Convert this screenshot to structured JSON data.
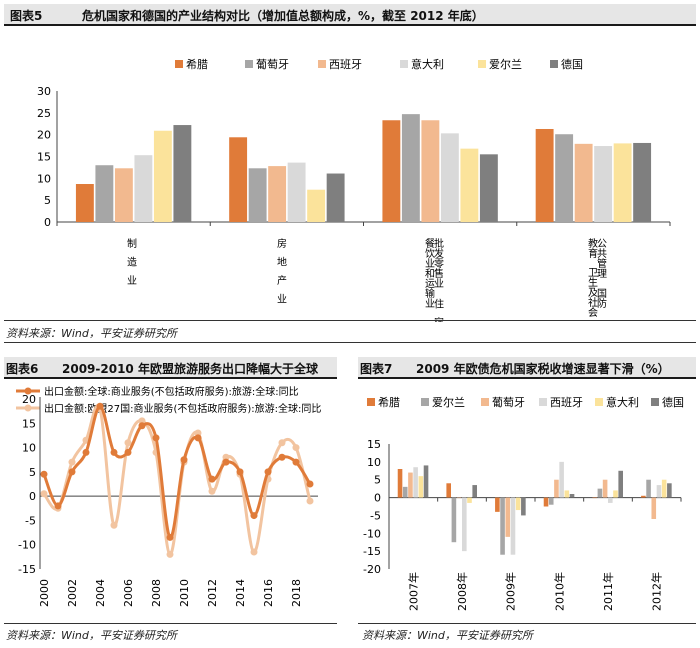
{
  "chart_data": [
    {
      "id": "fig5",
      "type": "bar",
      "figure_label": "图表5",
      "title": "危机国家和德国的产业结构对比（增加值总额构成，%，截至 2012 年底）",
      "legend": [
        "希腊",
        "葡萄牙",
        "西班牙",
        "意大利",
        "爱尔兰",
        "德国"
      ],
      "colors": [
        "#e07b39",
        "#a6a6a6",
        "#f2b98f",
        "#d9d9d9",
        "#fbe39b",
        "#7f7f7f"
      ],
      "categories": [
        {
          "lines": [
            "制",
            "造",
            "业"
          ]
        },
        {
          "lines": [
            "房",
            "地",
            "产",
            "业"
          ]
        },
        {
          "lines": [
            "批发零售业",
            "住",
            "宿"
          ],
          "lines2": [
            "餐饮业和运输业"
          ]
        },
        {
          "lines": [
            "教育",
            "卫生及社会",
            "工作"
          ],
          "lines2": [
            "公共管理",
            "国防"
          ]
        }
      ],
      "category_names": [
        "制造业",
        "房地产业",
        "批发零售业 住宿餐饮业和运输业",
        "教育 卫生及社会工作 公共管理 国防"
      ],
      "series": [
        {
          "name": "希腊",
          "values": [
            8.7,
            19.4,
            23.3,
            21.3
          ]
        },
        {
          "name": "葡萄牙",
          "values": [
            13.0,
            12.3,
            24.7,
            20.1
          ]
        },
        {
          "name": "西班牙",
          "values": [
            12.3,
            12.8,
            23.3,
            17.9
          ]
        },
        {
          "name": "意大利",
          "values": [
            15.3,
            13.6,
            20.3,
            17.4
          ]
        },
        {
          "name": "爱尔兰",
          "values": [
            20.9,
            7.4,
            16.8,
            18.0
          ]
        },
        {
          "name": "德国",
          "values": [
            22.2,
            11.1,
            15.5,
            18.1
          ]
        }
      ],
      "yticks": [
        0,
        5,
        10,
        15,
        20,
        25,
        30
      ],
      "ylim": [
        0,
        30
      ],
      "source": "资料来源：Wind，平安证券研究所"
    },
    {
      "id": "fig6",
      "type": "line",
      "figure_label": "图表6",
      "title": "2009-2010 年欧盟旅游服务出口降幅大于全球",
      "series": [
        {
          "name": "出口金额:全球:商业服务(不包括政府服务):旅游:全球:同比",
          "color": "#e07b39",
          "x": [
            2000,
            2001,
            2002,
            2003,
            2004,
            2005,
            2006,
            2007,
            2008,
            2009,
            2010,
            2011,
            2012,
            2013,
            2014,
            2015,
            2016,
            2017,
            2018,
            2019
          ],
          "values": [
            4.5,
            -2.0,
            5.0,
            9.0,
            18.5,
            9.0,
            9.0,
            14.5,
            12.0,
            -8.5,
            7.5,
            12.0,
            3.5,
            7.0,
            5.0,
            -4.0,
            5.0,
            8.0,
            7.0,
            2.5
          ]
        },
        {
          "name": "出口金额:欧盟27国:商业服务(不包括政府服务):旅游:全球:同比",
          "color": "#f2c4a0",
          "x": [
            2000,
            2001,
            2002,
            2003,
            2004,
            2005,
            2006,
            2007,
            2008,
            2009,
            2010,
            2011,
            2012,
            2013,
            2014,
            2015,
            2016,
            2017,
            2018,
            2019
          ],
          "values": [
            0.5,
            -2.5,
            7.0,
            11.5,
            18.0,
            -6.0,
            11.0,
            15.5,
            9.0,
            -12.0,
            7.0,
            13.0,
            1.0,
            8.0,
            4.5,
            -11.5,
            3.5,
            11.0,
            10.0,
            -1.0
          ]
        }
      ],
      "xticks": [
        2000,
        2002,
        2004,
        2006,
        2008,
        2010,
        2012,
        2014,
        2016,
        2018
      ],
      "yticks": [
        -15,
        -10,
        -5,
        0,
        5,
        10,
        15,
        20
      ],
      "ylim": [
        -15,
        20
      ],
      "xlim": [
        2000,
        2019
      ],
      "source": "资料来源：Wind，平安证券研究所"
    },
    {
      "id": "fig7",
      "type": "bar",
      "figure_label": "图表7",
      "title": "2009 年欧债危机国家税收增速显著下滑（%）",
      "legend": [
        "希腊",
        "爱尔兰",
        "葡萄牙",
        "西班牙",
        "意大利",
        "德国"
      ],
      "colors": [
        "#e07b39",
        "#a6a6a6",
        "#f2b98f",
        "#d9d9d9",
        "#fbe39b",
        "#7f7f7f"
      ],
      "categories": [
        "2007年",
        "2008年",
        "2009年",
        "2010年",
        "2011年",
        "2012年"
      ],
      "series": [
        {
          "name": "希腊",
          "values": [
            8.0,
            4.0,
            -4.0,
            -2.5,
            0.0,
            0.5
          ]
        },
        {
          "name": "爱尔兰",
          "values": [
            3.0,
            -12.5,
            -16.0,
            -2.0,
            2.5,
            5.0
          ]
        },
        {
          "name": "葡萄牙",
          "values": [
            7.0,
            0.0,
            -11.0,
            5.0,
            5.0,
            -6.0
          ]
        },
        {
          "name": "西班牙",
          "values": [
            8.5,
            -15.0,
            -16.0,
            10.0,
            -1.5,
            3.5
          ]
        },
        {
          "name": "意大利",
          "values": [
            6.0,
            -1.5,
            -3.5,
            2.0,
            2.0,
            5.0
          ]
        },
        {
          "name": "德国",
          "values": [
            9.0,
            3.5,
            -5.0,
            1.0,
            7.5,
            4.0
          ]
        }
      ],
      "yticks": [
        -20,
        -15,
        -10,
        -5,
        0,
        5,
        10,
        15
      ],
      "ylim": [
        -20,
        15
      ],
      "source": "资料来源：Wind，平安证券研究所"
    }
  ]
}
